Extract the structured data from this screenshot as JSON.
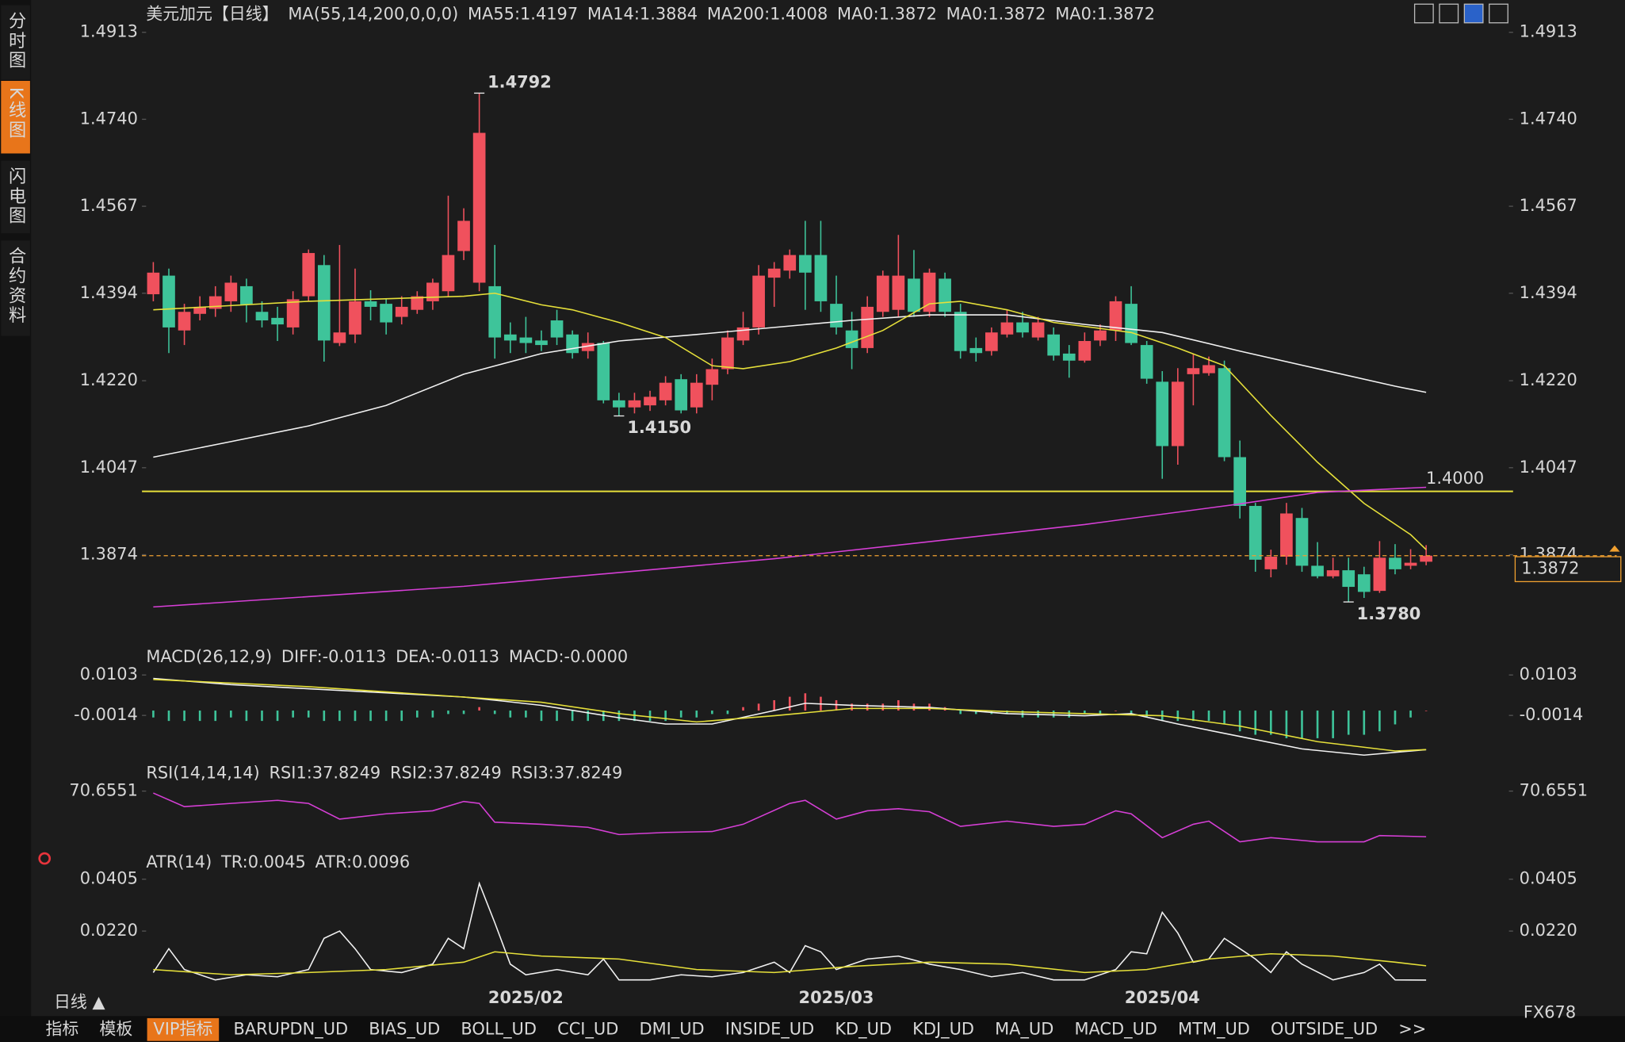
{
  "chart_data": [
    {
      "type": "candlestick",
      "title": "美元加元【日线】",
      "indicator_label": "MA(55,14,200,0,0,0)",
      "categories": [
        null,
        null,
        null,
        null,
        null,
        null,
        null,
        null,
        null,
        null,
        null,
        null,
        null,
        null,
        null,
        null,
        null,
        null,
        null,
        null,
        null,
        null,
        null,
        null,
        "2025/02",
        null,
        null,
        null,
        null,
        null,
        null,
        null,
        null,
        null,
        null,
        null,
        null,
        null,
        null,
        null,
        null,
        null,
        null,
        null,
        "2025/03",
        null,
        null,
        null,
        null,
        null,
        null,
        null,
        null,
        null,
        null,
        null,
        null,
        null,
        null,
        null,
        null,
        null,
        null,
        null,
        null,
        "2025/04",
        null,
        null,
        null,
        null,
        null,
        null,
        null,
        null,
        null,
        null,
        null,
        null,
        null,
        null,
        null,
        null,
        null
      ],
      "open": [
        1.4392,
        1.4429,
        1.432,
        1.4353,
        1.4363,
        1.4378,
        1.4408,
        1.4357,
        1.4345,
        1.4326,
        1.4388,
        1.445,
        1.4295,
        1.4312,
        1.4378,
        1.4373,
        1.4347,
        1.4361,
        1.4378,
        1.4398,
        1.4478,
        1.4415,
        1.4408,
        1.4312,
        1.4306,
        1.43,
        1.434,
        1.4312,
        1.4279,
        1.4295,
        1.4181,
        1.4167,
        1.4171,
        1.4181,
        1.4223,
        1.4167,
        1.4212,
        1.4243,
        1.43,
        1.4326,
        1.4425,
        1.4439,
        1.447,
        1.447,
        1.4373,
        1.432,
        1.4285,
        1.4357,
        1.4361,
        1.4423,
        1.4357,
        1.4423,
        1.4357,
        1.4285,
        1.4279,
        1.4312,
        1.4336,
        1.4306,
        1.4312,
        1.4274,
        1.426,
        1.43,
        1.432,
        1.4373,
        1.4291,
        1.4218,
        1.409,
        1.4233,
        1.4235,
        1.4245,
        1.4068,
        1.3971,
        1.3845,
        1.387,
        1.3947,
        1.3852,
        1.3831,
        1.3843,
        1.3835,
        1.3802,
        1.3868,
        1.3852,
        1.386
      ],
      "high": [
        1.4456,
        1.4443,
        1.4373,
        1.4388,
        1.4408,
        1.4429,
        1.4423,
        1.4378,
        1.4367,
        1.4398,
        1.4481,
        1.447,
        1.449,
        1.4443,
        1.44,
        1.4382,
        1.4388,
        1.4398,
        1.4423,
        1.4588,
        1.4563,
        1.4792,
        1.449,
        1.4336,
        1.4347,
        1.432,
        1.4361,
        1.432,
        1.4316,
        1.4299,
        1.4196,
        1.4196,
        1.42,
        1.4229,
        1.4233,
        1.4233,
        1.4264,
        1.432,
        1.4357,
        1.445,
        1.4456,
        1.4481,
        1.4538,
        1.4538,
        1.4429,
        1.4357,
        1.4388,
        1.4439,
        1.451,
        1.448,
        1.4443,
        1.4435,
        1.4373,
        1.4306,
        1.4326,
        1.4361,
        1.4357,
        1.4347,
        1.4326,
        1.4291,
        1.4316,
        1.4332,
        1.4388,
        1.4408,
        1.4299,
        1.4239,
        1.4245,
        1.4274,
        1.4268,
        1.426,
        1.4101,
        1.3977,
        1.3884,
        1.3977,
        1.3967,
        1.3899,
        1.3868,
        1.3868,
        1.385,
        1.3901,
        1.3895,
        1.3885,
        1.3893
      ],
      "low": [
        1.4378,
        1.4275,
        1.4291,
        1.434,
        1.4347,
        1.4357,
        1.4336,
        1.4326,
        1.4299,
        1.4312,
        1.4378,
        1.4258,
        1.4289,
        1.4295,
        1.434,
        1.4312,
        1.4332,
        1.4353,
        1.4361,
        1.4388,
        1.446,
        1.4398,
        1.4264,
        1.4275,
        1.4275,
        1.4279,
        1.4291,
        1.4264,
        1.4264,
        1.4175,
        1.415,
        1.4155,
        1.416,
        1.4171,
        1.4155,
        1.4155,
        1.4181,
        1.4233,
        1.4291,
        1.4312,
        1.4367,
        1.4423,
        1.4361,
        1.4357,
        1.4312,
        1.4243,
        1.4275,
        1.4347,
        1.4347,
        1.4347,
        1.4347,
        1.4347,
        1.4264,
        1.4258,
        1.427,
        1.4306,
        1.4306,
        1.43,
        1.426,
        1.4226,
        1.4256,
        1.4289,
        1.4299,
        1.4291,
        1.4214,
        1.4025,
        1.4053,
        1.4171,
        1.423,
        1.406,
        1.3946,
        1.384,
        1.3829,
        1.3854,
        1.384,
        1.3827,
        1.3827,
        1.378,
        1.3788,
        1.3798,
        1.3835,
        1.3845,
        1.3853
      ],
      "close": [
        1.4435,
        1.4326,
        1.4357,
        1.4367,
        1.4388,
        1.4415,
        1.4371,
        1.434,
        1.4332,
        1.4382,
        1.4474,
        1.43,
        1.4316,
        1.4378,
        1.4367,
        1.4336,
        1.4367,
        1.4388,
        1.4415,
        1.447,
        1.4538,
        1.4713,
        1.4306,
        1.43,
        1.4295,
        1.4291,
        1.4306,
        1.4275,
        1.4295,
        1.4181,
        1.4167,
        1.4181,
        1.4188,
        1.4216,
        1.4161,
        1.4216,
        1.4243,
        1.4306,
        1.4326,
        1.4429,
        1.4443,
        1.447,
        1.4435,
        1.4378,
        1.4326,
        1.4285,
        1.4367,
        1.4429,
        1.4429,
        1.4357,
        1.4435,
        1.4357,
        1.4279,
        1.4275,
        1.4316,
        1.4336,
        1.4316,
        1.4336,
        1.427,
        1.426,
        1.4299,
        1.432,
        1.4378,
        1.4295,
        1.4224,
        1.409,
        1.4218,
        1.4245,
        1.4251,
        1.4068,
        1.3971,
        1.3864,
        1.387,
        1.3956,
        1.3852,
        1.3831,
        1.3843,
        1.381,
        1.38,
        1.3868,
        1.3845,
        1.3858,
        1.3872
      ],
      "up_color": "#f0515d",
      "down_color": "#3ec49a",
      "series": [
        {
          "name": "MA55:1.4197",
          "color": "#f2f2f2",
          "x": [
            0,
            5,
            10,
            15,
            20,
            25,
            30,
            35,
            40,
            45,
            50,
            55,
            60,
            65,
            70,
            75,
            80,
            82
          ],
          "values": [
            1.4068,
            1.4099,
            1.413,
            1.4171,
            1.4233,
            1.4274,
            1.4299,
            1.4312,
            1.4326,
            1.434,
            1.4351,
            1.4351,
            1.4332,
            1.4316,
            1.4279,
            1.4244,
            1.4209,
            1.4197
          ]
        },
        {
          "name": "MA14:1.3884",
          "color": "#e6e03a",
          "x": [
            0,
            10,
            20,
            22,
            25,
            27,
            30,
            33,
            36,
            38,
            41,
            44,
            47,
            50,
            52,
            55,
            58,
            61,
            63,
            66,
            69,
            72,
            75,
            78,
            81,
            82
          ],
          "values": [
            1.4361,
            1.4378,
            1.4388,
            1.4394,
            1.4371,
            1.4361,
            1.4336,
            1.4306,
            1.425,
            1.4244,
            1.4258,
            1.4285,
            1.432,
            1.4373,
            1.4378,
            1.4361,
            1.4336,
            1.4324,
            1.4316,
            1.4285,
            1.425,
            1.4151,
            1.4058,
            1.3976,
            1.3914,
            1.3884
          ]
        },
        {
          "name": "MA200:1.4008",
          "color": "#d63fd6",
          "x": [
            0,
            20,
            40,
            60,
            70,
            75,
            82
          ],
          "values": [
            1.377,
            1.3811,
            1.3866,
            1.3934,
            1.3975,
            1.3998,
            1.4008
          ]
        }
      ],
      "legend_texts": [
        {
          "text": "MA0:1.3872",
          "color": "#2fc22f"
        },
        {
          "text": "MA0:1.3872",
          "color": "#9a9a9a"
        },
        {
          "text": "MA0:1.3872",
          "color": "#e8343c"
        }
      ],
      "hline": {
        "value": 1.4,
        "label": "1.4000",
        "color": "#e6e03a"
      },
      "last_price": 1.3872,
      "annotations": [
        {
          "x": 21,
          "y": 1.4792,
          "label": "1.4792"
        },
        {
          "x": 30,
          "y": 1.415,
          "label": "1.4150"
        },
        {
          "x": 77,
          "y": 1.378,
          "label": "1.3780"
        }
      ],
      "xlim": [
        -0.73,
        87.6
      ],
      "ylim": [
        1.3709,
        1.4936
      ],
      "yticks": [
        1.4913,
        {
          "value": 1.474,
          "label": "1.4740"
        },
        1.4567,
        1.4394,
        {
          "value": 1.422,
          "label": "1.4220"
        },
        1.4047,
        1.3874
      ]
    },
    {
      "type": "macd",
      "title": "MACD(26,12,9)",
      "series": [
        {
          "name": "DIFF:-0.0113",
          "color": "#f2f2f2",
          "x": [
            0,
            5,
            10,
            15,
            20,
            22,
            25,
            30,
            33,
            36,
            40,
            42,
            45,
            50,
            55,
            60,
            63,
            66,
            70,
            74,
            78,
            82
          ],
          "values": [
            0.0093,
            0.0075,
            0.0063,
            0.0051,
            0.0039,
            0.003,
            0.0015,
            -0.0021,
            -0.0039,
            -0.0039,
            0,
            0.0021,
            0.0015,
            0.0009,
            -0.0009,
            -0.0015,
            -0.0009,
            -0.0039,
            -0.0075,
            -0.0111,
            -0.0129,
            -0.0113
          ]
        },
        {
          "name": "DEA:-0.0113",
          "color": "#e6e03a",
          "x": [
            0,
            10,
            20,
            25,
            30,
            35,
            40,
            45,
            50,
            55,
            60,
            65,
            70,
            75,
            80,
            82
          ],
          "values": [
            0.009,
            0.0069,
            0.0039,
            0.0024,
            -0.0009,
            -0.0033,
            -0.0015,
            0.0006,
            0.0006,
            -0.0003,
            -0.0009,
            -0.0015,
            -0.0045,
            -0.009,
            -0.0117,
            -0.0113
          ]
        }
      ],
      "histogram": {
        "name": "MACD:-0.0000",
        "color": "#d63fd6",
        "up_color": "#f0515d",
        "down_color": "#3ec49a",
        "values": [
          -0.002,
          -0.003,
          -0.003,
          -0.003,
          -0.003,
          -0.002,
          -0.003,
          -0.003,
          -0.003,
          -0.002,
          -0.002,
          -0.003,
          -0.003,
          -0.003,
          -0.003,
          -0.003,
          -0.003,
          -0.002,
          -0.002,
          -0.001,
          -0.001,
          0.001,
          -0.001,
          -0.002,
          -0.002,
          -0.003,
          -0.003,
          -0.003,
          -0.003,
          -0.003,
          -0.003,
          -0.003,
          -0.003,
          -0.003,
          -0.002,
          -0.002,
          -0.001,
          -0.001,
          0.001,
          0.002,
          0.003,
          0.004,
          0.005,
          0.004,
          0.003,
          0.002,
          0.002,
          0.002,
          0.003,
          0.002,
          0.002,
          0.001,
          -0.001,
          -0.001,
          -0.001,
          -0.001,
          -0.002,
          -0.002,
          -0.002,
          -0.002,
          -0.001,
          -0.001,
          0,
          -0.001,
          -0.002,
          -0.003,
          -0.003,
          -0.003,
          -0.003,
          -0.004,
          -0.006,
          -0.007,
          -0.007,
          -0.008,
          -0.008,
          -0.008,
          -0.008,
          -0.007,
          -0.007,
          -0.006,
          -0.004,
          -0.002,
          0
        ]
      },
      "xlim": [
        -0.73,
        87.6
      ],
      "ylim": [
        -0.0149,
        0.0136
      ],
      "yticks": [
        0.0103,
        -0.0014
      ]
    },
    {
      "type": "line",
      "title": "RSI(14,14,14)",
      "legend_texts": [
        {
          "text": "RSI1:37.8249",
          "color": "#f2f2f2"
        },
        {
          "text": "RSI2:37.8249",
          "color": "#e6e03a"
        }
      ],
      "series": [
        {
          "name": "RSI3:37.8249",
          "color": "#d63fd6",
          "x": [
            0,
            2,
            5,
            8,
            10,
            12,
            15,
            18,
            20,
            21,
            22,
            25,
            28,
            30,
            33,
            36,
            38,
            41,
            42,
            44,
            46,
            48,
            50,
            52,
            55,
            58,
            60,
            62,
            63,
            65,
            67,
            68,
            70,
            72,
            75,
            78,
            79,
            82
          ],
          "values": [
            69.2,
            59.5,
            61.8,
            64,
            61.8,
            50.5,
            54.3,
            56.5,
            63.2,
            61.8,
            48.3,
            46.8,
            44.6,
            39.4,
            40.9,
            41.6,
            46.8,
            61.8,
            64,
            50.5,
            56.5,
            58,
            55.8,
            45.3,
            49,
            45.3,
            46.8,
            56.5,
            54.3,
            37.2,
            46.8,
            49,
            34.2,
            37.2,
            34.2,
            34.2,
            38.7,
            37.8249
          ]
        }
      ],
      "xlim": [
        -0.73,
        87.6
      ],
      "ylim": [
        20.7,
        87.8
      ],
      "yticks": [
        70.6551
      ]
    },
    {
      "type": "line",
      "title": "ATR(14)",
      "series": [
        {
          "name": "TR:0.0045",
          "color": "#f2f2f2",
          "x": [
            0,
            1,
            2,
            4,
            6,
            8,
            10,
            11,
            12,
            13,
            14,
            16,
            18,
            19,
            20,
            21,
            22,
            23,
            24,
            26,
            28,
            29,
            30,
            32,
            34,
            36,
            38,
            40,
            41,
            42,
            43,
            44,
            46,
            48,
            50,
            52,
            54,
            56,
            58,
            60,
            62,
            63,
            64,
            65,
            66,
            67,
            68,
            69,
            70,
            71,
            72,
            73,
            74,
            76,
            78,
            79,
            80,
            82
          ],
          "values": [
            0.0072,
            0.0157,
            0.0083,
            0.0046,
            0.0064,
            0.0057,
            0.0083,
            0.0194,
            0.022,
            0.0157,
            0.0083,
            0.0072,
            0.0102,
            0.0194,
            0.0157,
            0.039,
            0.025,
            0.0102,
            0.0064,
            0.0083,
            0.0064,
            0.012,
            0.0046,
            0.0046,
            0.0064,
            0.0057,
            0.0072,
            0.0109,
            0.0072,
            0.0168,
            0.0146,
            0.0083,
            0.012,
            0.0131,
            0.0102,
            0.0083,
            0.0057,
            0.0072,
            0.0046,
            0.0046,
            0.0083,
            0.0146,
            0.0139,
            0.0287,
            0.0213,
            0.0109,
            0.012,
            0.0194,
            0.0157,
            0.012,
            0.0072,
            0.0146,
            0.0102,
            0.0046,
            0.0072,
            0.0102,
            0.0046,
            0.0045
          ]
        },
        {
          "name": "ATR:0.0096",
          "color": "#e6e03a",
          "x": [
            0,
            5,
            10,
            15,
            20,
            22,
            25,
            30,
            35,
            40,
            45,
            50,
            55,
            60,
            64,
            68,
            72,
            76,
            80,
            82
          ],
          "values": [
            0.0083,
            0.0064,
            0.0072,
            0.0083,
            0.0109,
            0.0146,
            0.0131,
            0.012,
            0.0083,
            0.0072,
            0.0094,
            0.0109,
            0.0102,
            0.0072,
            0.0083,
            0.012,
            0.0139,
            0.0131,
            0.0109,
            0.0096
          ]
        }
      ],
      "xlim": [
        -0.73,
        87.6
      ],
      "ylim": [
        0,
        0.0453
      ],
      "yticks": [
        0.0405,
        {
          "value": 0.022,
          "label": "0.0220"
        }
      ]
    }
  ],
  "ui": {
    "sidebar": [
      "分时图",
      "K线图",
      "闪电图",
      "合约资料"
    ],
    "tabs": [
      "指标",
      "模板",
      "VIP指标",
      "BARUPDN_UD",
      "BIAS_UD",
      "BOLL_UD",
      "CCI_UD",
      "DMI_UD",
      "INSIDE_UD",
      "KD_UD",
      "KDJ_UD",
      "MA_UD",
      "MACD_UD",
      "MTM_UD",
      "OUTSIDE_UD",
      ">>"
    ],
    "period": "日线 ▲",
    "watermark": "FX678"
  }
}
